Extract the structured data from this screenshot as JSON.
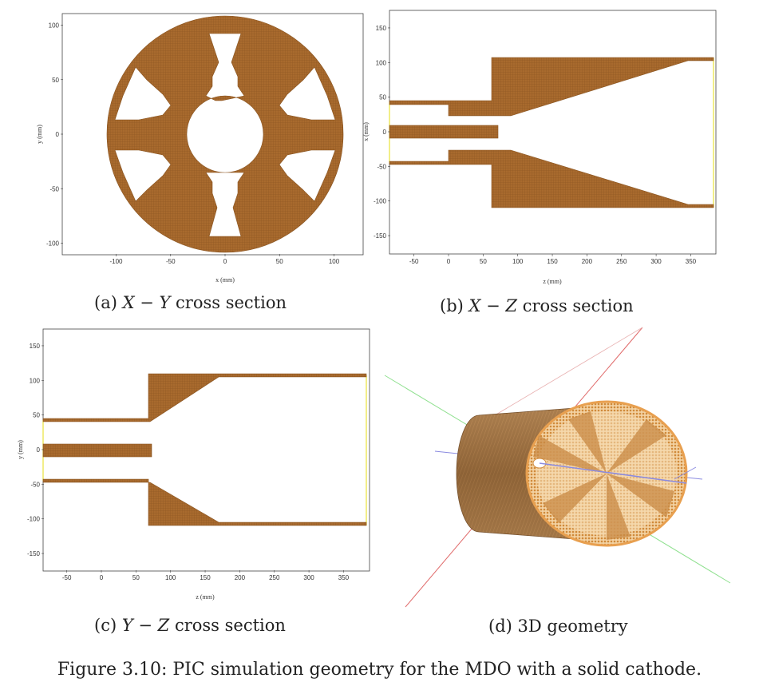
{
  "colors": {
    "metal": "#a86a2e",
    "metal_edge": "#8a5420",
    "mesh": "#7a4a18",
    "boundary": "#e8e23a",
    "cyl_light": "#d9a05a",
    "cyl_dark": "#8b6236"
  },
  "panels": [
    {
      "caption": {
        "tag": "(a)",
        "math": "X − Y",
        "text": "cross section"
      },
      "chart_data": {
        "type": "diagram",
        "xlabel": "x (mm)",
        "ylabel": "y (mm)",
        "xticks": [
          -100,
          -50,
          0,
          50,
          100
        ],
        "yticks": [
          100,
          50,
          0,
          -50,
          -100
        ],
        "xlim": [
          -150,
          125
        ],
        "ylim": [
          -110,
          110
        ],
        "cathode_radius_mm": 110,
        "vanes": 6
      }
    },
    {
      "caption": {
        "tag": "(b)",
        "math": "X − Z",
        "text": "cross section"
      },
      "chart_data": {
        "type": "diagram",
        "xlabel": "z (mm)",
        "ylabel": "x (mm)",
        "xticks": [
          -50,
          0,
          50,
          100,
          150,
          200,
          250,
          300,
          350
        ],
        "yticks": [
          150,
          100,
          50,
          0,
          -50,
          -100,
          -150
        ],
        "xlim": [
          -85,
          382
        ],
        "ylim": [
          -172,
          172
        ]
      }
    },
    {
      "caption": {
        "tag": "(c)",
        "math": "Y − Z",
        "text": "cross section"
      },
      "chart_data": {
        "type": "diagram",
        "xlabel": "z (mm)",
        "ylabel": "y (mm)",
        "xticks": [
          -50,
          0,
          50,
          100,
          150,
          200,
          250,
          300,
          350
        ],
        "yticks": [
          150,
          100,
          50,
          0,
          -50,
          -100,
          -150
        ],
        "xlim": [
          -85,
          382
        ],
        "ylim": [
          -172,
          172
        ]
      }
    },
    {
      "caption": {
        "tag": "(d)",
        "math": "",
        "text": "3D geometry"
      }
    }
  ],
  "figure_caption": "Figure 3.10: PIC simulation geometry for the MDO with a solid cathode."
}
